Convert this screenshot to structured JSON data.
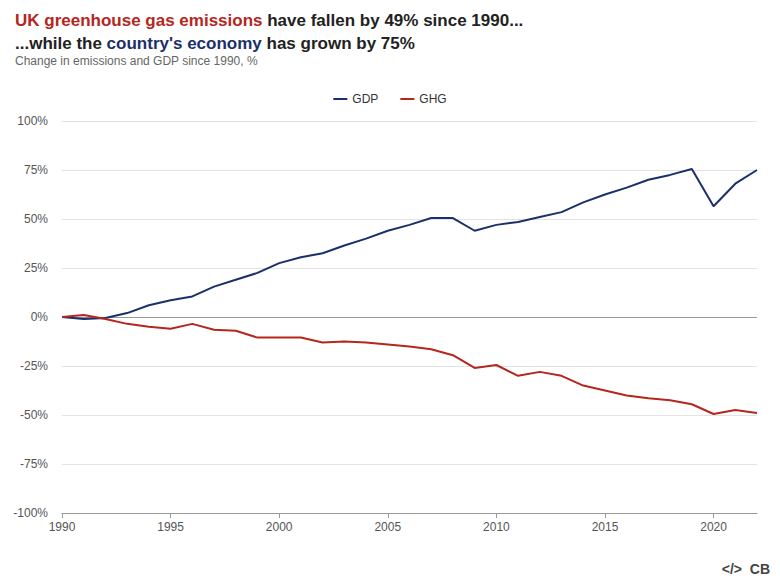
{
  "chart_data": {
    "type": "line",
    "title": [
      [
        {
          "text": "UK greenhouse gas emissions",
          "color": "#b5261e"
        },
        {
          "text": " have fallen by 49% since 1990..."
        }
      ],
      [
        {
          "text": "...while the "
        },
        {
          "text": "country's economy",
          "color": "#1b2f6b"
        },
        {
          "text": " has grown by 75%"
        }
      ]
    ],
    "subtitle": "Change in emissions and GDP since 1990, %",
    "x": [
      1990,
      1991,
      1992,
      1993,
      1994,
      1995,
      1996,
      1997,
      1998,
      1999,
      2000,
      2001,
      2002,
      2003,
      2004,
      2005,
      2006,
      2007,
      2008,
      2009,
      2010,
      2011,
      2012,
      2013,
      2014,
      2015,
      2016,
      2017,
      2018,
      2019,
      2020,
      2021,
      2022
    ],
    "series": [
      {
        "name": "GDP",
        "color": "#1b2f6b",
        "values": [
          0,
          -1,
          -0.5,
          2,
          6,
          8.5,
          10.5,
          15.5,
          19,
          22.5,
          27.5,
          30.5,
          32.5,
          36.5,
          40,
          44,
          47,
          50.5,
          50.5,
          44,
          47,
          48.5,
          51,
          53.5,
          58.5,
          62.5,
          66,
          70,
          72.5,
          75.5,
          56.5,
          68,
          75
        ]
      },
      {
        "name": "GHG",
        "color": "#b5261e",
        "values": [
          0,
          1,
          -1,
          -3.5,
          -5,
          -6,
          -3.5,
          -6.5,
          -7,
          -10.5,
          -10.5,
          -10.5,
          -13,
          -12.5,
          -13,
          -14,
          -15,
          -16.5,
          -19.5,
          -26,
          -24.5,
          -30,
          -28,
          -30,
          -35,
          -37.5,
          -40,
          -41.5,
          -42.5,
          -44.5,
          -49.5,
          -47.5,
          -49
        ]
      }
    ],
    "xlim": [
      1990,
      2022
    ],
    "xticks": [
      1990,
      1995,
      2000,
      2005,
      2010,
      2015,
      2020
    ],
    "ylim": [
      -100,
      100
    ],
    "yticks": [
      {
        "value": -100,
        "label": "-100%"
      },
      {
        "value": -75,
        "label": "-75%"
      },
      {
        "value": -50,
        "label": "-50%"
      },
      {
        "value": -25,
        "label": "-25%"
      },
      {
        "value": 0,
        "label": "0%"
      },
      {
        "value": 25,
        "label": "25%"
      },
      {
        "value": 50,
        "label": "50%"
      },
      {
        "value": 75,
        "label": "75%"
      },
      {
        "value": 100,
        "label": "100%"
      }
    ],
    "grid": true,
    "legend": "top",
    "annotations": [
      "</>",
      "CB"
    ]
  }
}
